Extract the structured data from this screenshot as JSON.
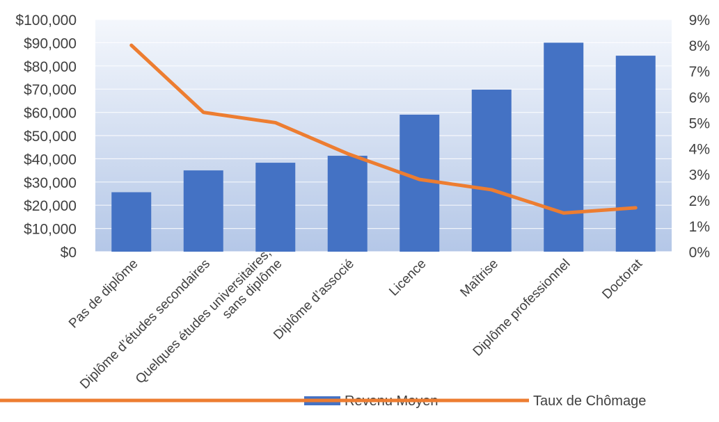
{
  "chart_data": {
    "type": "bar+line",
    "categories": [
      "Pas de diplôme",
      "Diplôme d’études secondaires",
      "Quelques études universitaires, sans diplôme",
      "Diplôme d’associé",
      "Licence",
      "Maîtrise",
      "Diplôme professionnel",
      "Doctorat"
    ],
    "category_lines": [
      [
        "Pas de diplôme"
      ],
      [
        "Diplôme d’études secondaires"
      ],
      [
        "Quelques études universitaires,",
        "sans diplôme"
      ],
      [
        "Diplôme d’associé"
      ],
      [
        "Licence"
      ],
      [
        "Maîtrise"
      ],
      [
        "Diplôme professionnel"
      ],
      [
        "Doctorat"
      ]
    ],
    "series": [
      {
        "name": "Revenu Moyen",
        "type": "bar",
        "axis": "left",
        "color": "#4472C4",
        "values": [
          25600,
          35000,
          38300,
          41300,
          59000,
          69800,
          90000,
          84400
        ]
      },
      {
        "name": "Taux de Chômage",
        "type": "line",
        "axis": "right",
        "color": "#ED7D31",
        "values": [
          8.0,
          5.4,
          5.0,
          3.8,
          2.8,
          2.4,
          1.5,
          1.7
        ]
      }
    ],
    "y_left": {
      "lim": [
        0,
        100000
      ],
      "ticks": [
        "$0",
        "$10,000",
        "$20,000",
        "$30,000",
        "$40,000",
        "$50,000",
        "$60,000",
        "$70,000",
        "$80,000",
        "$90,000",
        "$100,000"
      ]
    },
    "y_right": {
      "lim": [
        0,
        9
      ],
      "ticks": [
        "0%",
        "1%",
        "2%",
        "3%",
        "4%",
        "5%",
        "6%",
        "7%",
        "8%",
        "9%"
      ]
    },
    "grid": true,
    "legend": "bottom-right"
  }
}
